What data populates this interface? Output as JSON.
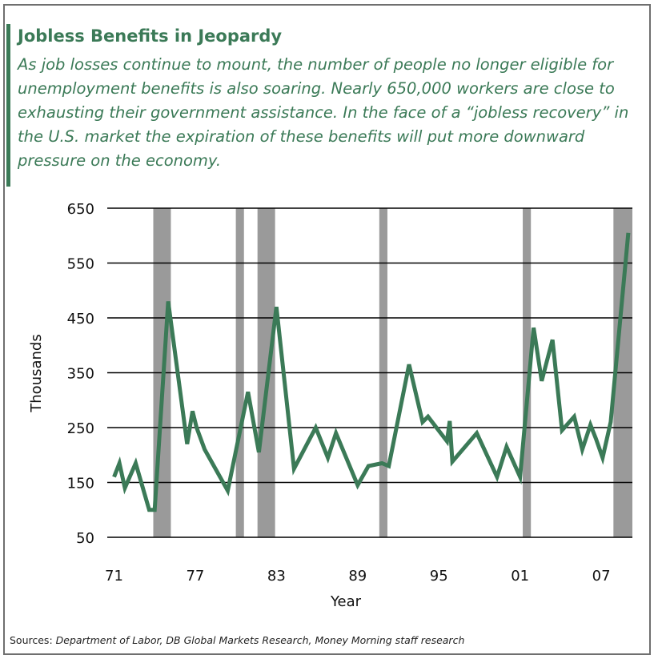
{
  "title": "Jobless Benefits in Jeopardy",
  "subtitle": "As job losses continue to mount, the number of people no longer eligible for unemployment benefits is also soaring. Nearly 650,000 workers are close to exhausting their government assistance. In the face of a “jobless recovery” in the U.S. market the expiration of these benefits will put more downward pressure on the economy.",
  "sources_label": "Sources:",
  "sources_text": "Department of Labor, DB Global Markets Research, Money Morning staff research",
  "colors": {
    "accent": "#3b7a57",
    "line": "#3b7a57",
    "recession": "#9a9a9a",
    "grid": "#000000"
  },
  "chart_data": {
    "type": "line",
    "title": "",
    "xlabel": "Year",
    "ylabel": "Thousands",
    "ylim": [
      50,
      650
    ],
    "xlim": [
      1970.5,
      2009.3
    ],
    "yticks": [
      650,
      550,
      450,
      350,
      250,
      150,
      50
    ],
    "xticks": [
      {
        "value": 1971,
        "label": "71"
      },
      {
        "value": 1977,
        "label": "77"
      },
      {
        "value": 1983,
        "label": "83"
      },
      {
        "value": 1989,
        "label": "89"
      },
      {
        "value": 1995,
        "label": "95"
      },
      {
        "value": 2001,
        "label": "01"
      },
      {
        "value": 2007,
        "label": "07"
      }
    ],
    "grid": "horizontal",
    "recessions": [
      [
        1973.9,
        1975.2
      ],
      [
        1980.0,
        1980.6
      ],
      [
        1981.6,
        1982.9
      ],
      [
        1990.6,
        1991.2
      ],
      [
        2001.2,
        2001.8
      ],
      [
        2007.9,
        2009.3
      ]
    ],
    "series": [
      {
        "x": [
          1971.0,
          1971.4,
          1971.8,
          1972.6,
          1973.6,
          1974.0,
          1975.0,
          1976.4,
          1976.8,
          1977.1,
          1977.7,
          1979.4,
          1980.9,
          1981.7,
          1983.0,
          1984.3,
          1985.9,
          1986.8,
          1987.4,
          1989.0,
          1989.8,
          1990.8,
          1991.3,
          1992.8,
          1993.8,
          1994.2,
          1995.6,
          1995.8,
          1996.0,
          1997.8,
          1999.3,
          2000.0,
          2001.0,
          2002.0,
          2002.6,
          2003.4,
          2004.1,
          2005.0,
          2005.6,
          2006.2,
          2006.6,
          2007.1,
          2007.7,
          2009.0
        ],
        "values": [
          160,
          185,
          140,
          185,
          100,
          100,
          480,
          220,
          280,
          250,
          210,
          135,
          315,
          205,
          470,
          175,
          250,
          195,
          240,
          145,
          180,
          185,
          180,
          365,
          260,
          270,
          225,
          262,
          188,
          240,
          160,
          215,
          160,
          432,
          335,
          410,
          245,
          270,
          210,
          255,
          230,
          195,
          260,
          605
        ]
      }
    ]
  }
}
